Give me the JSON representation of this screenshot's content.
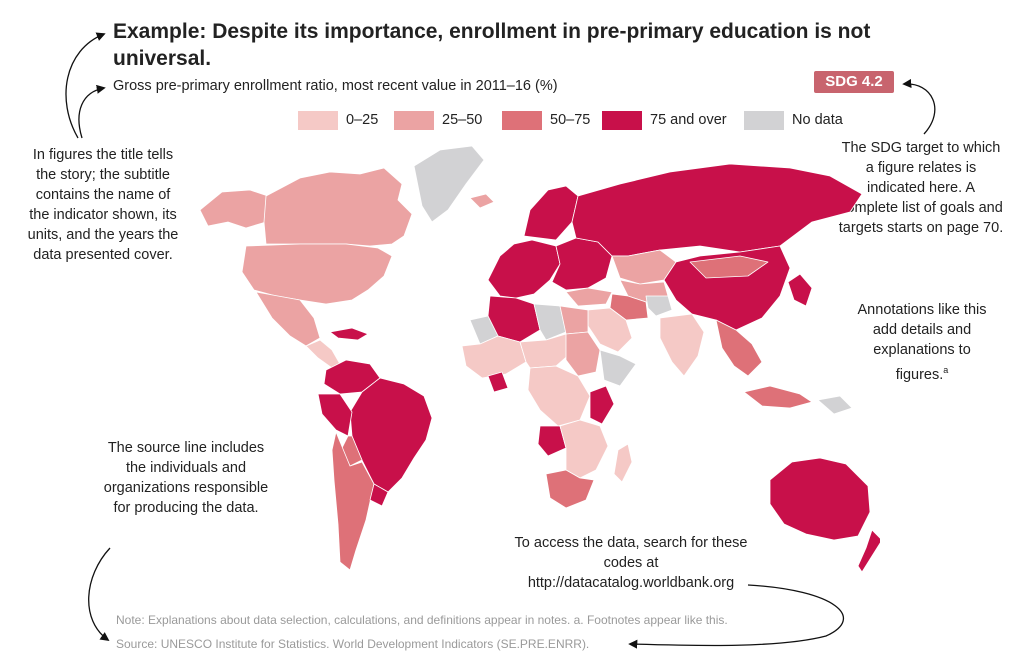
{
  "title": "Example: Despite its importance, enrollment in pre-primary education is not universal.",
  "subtitle": "Gross pre-primary enrollment ratio, most recent value in 2011–16 (%)",
  "sdg_badge": "SDG 4.2",
  "legend": [
    {
      "label": "0–25",
      "color": "#f5c9c6"
    },
    {
      "label": "25–50",
      "color": "#eba3a3"
    },
    {
      "label": "50–75",
      "color": "#de7178"
    },
    {
      "label": "75 and over",
      "color": "#c8104a"
    },
    {
      "label": "No data",
      "color": "#d2d2d4"
    }
  ],
  "annotations": {
    "title_story": "In figures the title tells the story; the subtitle contains the name of the indicator shown, its units, and the years the data presented cover.",
    "sdg_target": "The SDG target to which a figure relates is indicated here. A complete list of goals and targets starts on page 70.",
    "details": "Annotations like this add details and explanations to figures.",
    "details_marker": "a",
    "source_line": "The source line includes the individuals and organizations responsible for producing the data.",
    "data_codes": "To access the data, search for these codes at http://datacatalog.worldbank.org"
  },
  "note": "Note: Explanations about data selection, calculations, and definitions appear in notes. a. Footnotes appear like this.",
  "source": "Source: UNESCO Institute for Statistics. World Development Indicators (SE.PRE.ENRR).",
  "map": {
    "regions": [
      {
        "name": "alaska",
        "category": 2
      },
      {
        "name": "canada",
        "category": 2
      },
      {
        "name": "greenland",
        "category": 5
      },
      {
        "name": "usa",
        "category": 2
      },
      {
        "name": "mexico",
        "category": 2
      },
      {
        "name": "central-america",
        "category": 1
      },
      {
        "name": "caribbean",
        "category": 4
      },
      {
        "name": "colombia-venezuela",
        "category": 4
      },
      {
        "name": "brazil",
        "category": 4
      },
      {
        "name": "peru",
        "category": 4
      },
      {
        "name": "bolivia",
        "category": 3
      },
      {
        "name": "argentina-chile",
        "category": 3
      },
      {
        "name": "uruguay",
        "category": 4
      },
      {
        "name": "iceland",
        "category": 2
      },
      {
        "name": "western-europe",
        "category": 4
      },
      {
        "name": "scandinavia",
        "category": 4
      },
      {
        "name": "eastern-europe",
        "category": 4
      },
      {
        "name": "russia",
        "category": 4
      },
      {
        "name": "turkey",
        "category": 2
      },
      {
        "name": "kazakhstan",
        "category": 2
      },
      {
        "name": "china",
        "category": 4
      },
      {
        "name": "mongolia",
        "category": 3
      },
      {
        "name": "central-asia",
        "category": 2
      },
      {
        "name": "iran",
        "category": 3
      },
      {
        "name": "afghanistan",
        "category": 5
      },
      {
        "name": "arabia",
        "category": 1
      },
      {
        "name": "india",
        "category": 1
      },
      {
        "name": "southeast-asia",
        "category": 3
      },
      {
        "name": "japan-korea",
        "category": 4
      },
      {
        "name": "indonesia",
        "category": 3
      },
      {
        "name": "papua-new-guinea",
        "category": 5
      },
      {
        "name": "morocco-algeria",
        "category": 4
      },
      {
        "name": "western-sahara",
        "category": 5
      },
      {
        "name": "libya",
        "category": 5
      },
      {
        "name": "egypt",
        "category": 2
      },
      {
        "name": "west-africa",
        "category": 1
      },
      {
        "name": "sahel",
        "category": 1
      },
      {
        "name": "ghana",
        "category": 4
      },
      {
        "name": "sudan",
        "category": 2
      },
      {
        "name": "horn-of-africa",
        "category": 5
      },
      {
        "name": "central-africa",
        "category": 1
      },
      {
        "name": "east-africa",
        "category": 4
      },
      {
        "name": "angola",
        "category": 4
      },
      {
        "name": "southern-africa",
        "category": 1
      },
      {
        "name": "south-africa",
        "category": 3
      },
      {
        "name": "madagascar",
        "category": 1
      },
      {
        "name": "australia",
        "category": 4
      },
      {
        "name": "new-zealand",
        "category": 4
      }
    ]
  }
}
